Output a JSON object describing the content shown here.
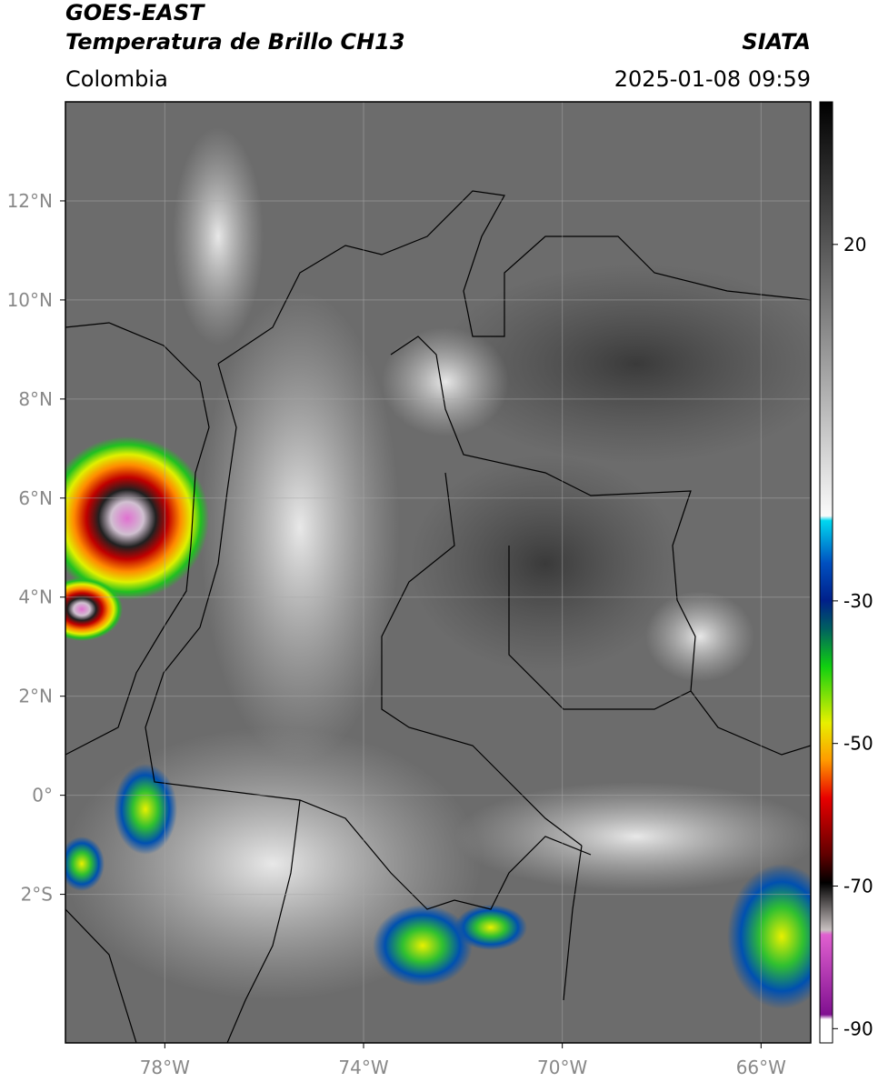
{
  "header": {
    "title": "GOES-EAST",
    "subtitle": "Temperatura de Brillo CH13",
    "region": "Colombia",
    "source": "SIATA",
    "datetime": "2025-01-08 09:59"
  },
  "map": {
    "xlim": [
      -80,
      -65
    ],
    "ylim": [
      -5,
      14
    ],
    "xticks": [
      {
        "value": -78,
        "label": "78°W"
      },
      {
        "value": -74,
        "label": "74°W"
      },
      {
        "value": -70,
        "label": "70°W"
      },
      {
        "value": -66,
        "label": "66°W"
      }
    ],
    "yticks": [
      {
        "value": 12,
        "label": "12°N"
      },
      {
        "value": 10,
        "label": "10°N"
      },
      {
        "value": 8,
        "label": "8°N"
      },
      {
        "value": 6,
        "label": "6°N"
      },
      {
        "value": 4,
        "label": "4°N"
      },
      {
        "value": 2,
        "label": "2°N"
      },
      {
        "value": 0,
        "label": "0°"
      },
      {
        "value": -2,
        "label": "2°S"
      }
    ],
    "grid": true
  },
  "colorbar": {
    "lim": [
      -92,
      40
    ],
    "ticks": [
      20,
      -30,
      -50,
      -70,
      -90
    ]
  }
}
